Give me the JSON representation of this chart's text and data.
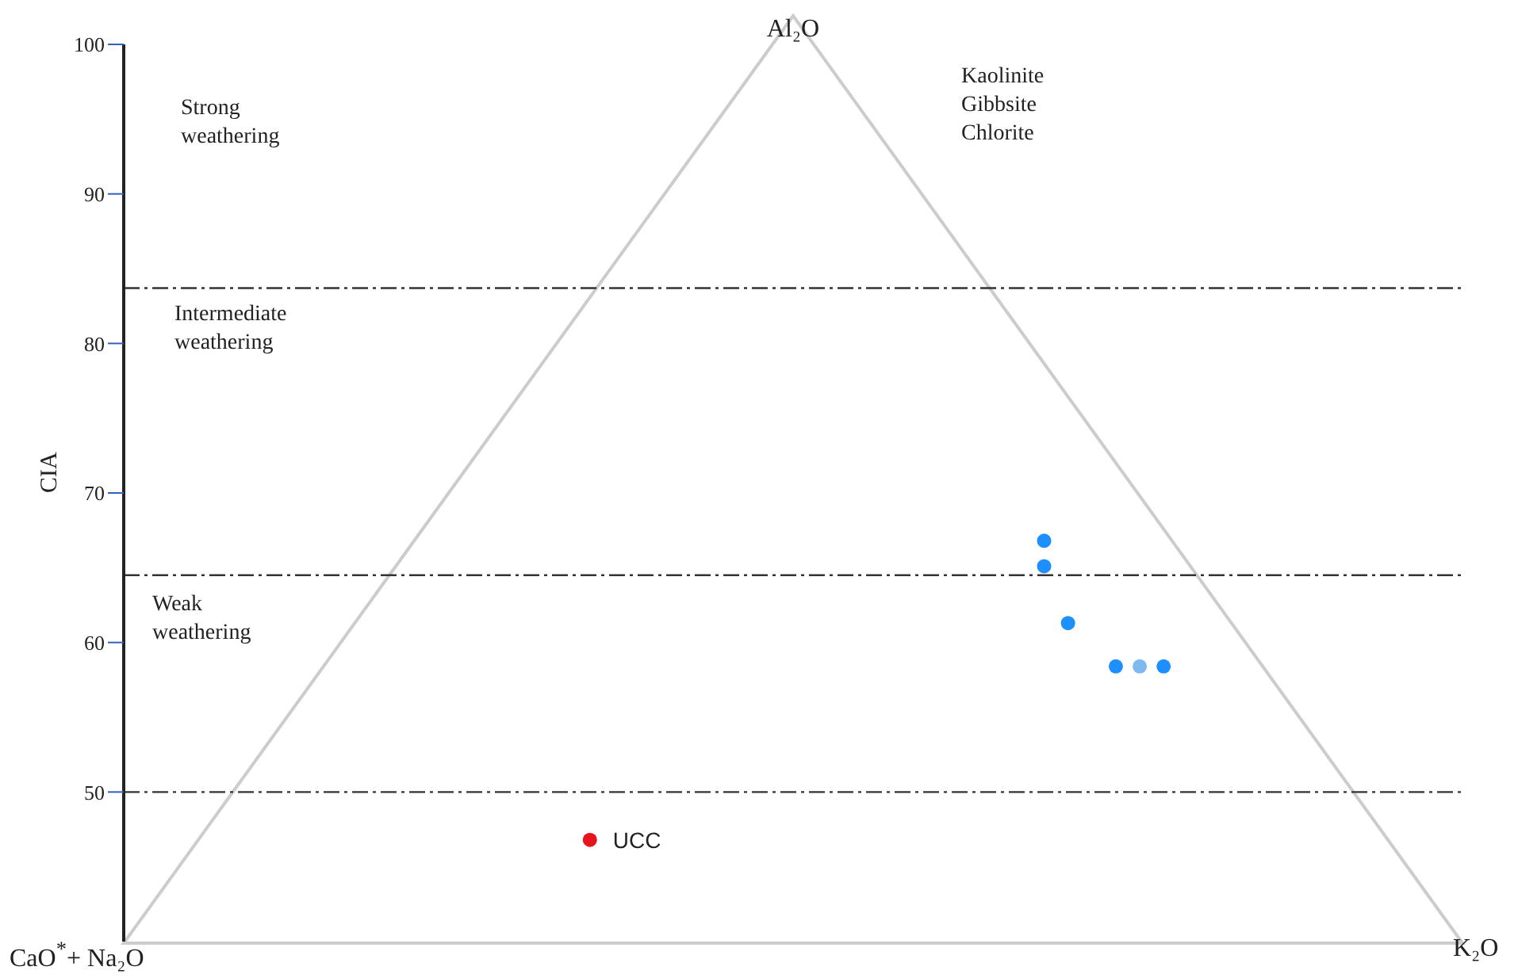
{
  "chart_data": {
    "type": "scatter",
    "ylabel": "CIA",
    "ylim": [
      40,
      100
    ],
    "yticks": [
      50,
      60,
      70,
      80,
      90,
      100
    ],
    "tick_labels": "y",
    "grid": false,
    "marker": "circle",
    "categories": [
      null,
      null,
      null,
      null,
      null,
      null,
      null,
      null,
      null,
      null,
      null,
      null,
      null,
      null,
      null,
      null,
      null,
      null,
      null,
      null,
      null,
      null,
      null,
      null,
      null,
      null,
      null,
      null,
      null,
      null,
      null,
      null,
      null,
      null,
      null,
      null,
      null,
      null,
      null,
      null,
      null,
      null,
      null,
      null,
      null,
      null,
      null,
      null,
      null,
      null,
      null,
      null,
      null,
      null,
      null,
      null
    ],
    "series": [
      {
        "color": "#1e8fff",
        "values": [
          null,
          null,
          null,
          null,
          null,
          null,
          null,
          null,
          null,
          null,
          null,
          null,
          null,
          null,
          null,
          null,
          null,
          null,
          null,
          null,
          null,
          null,
          null,
          null,
          null,
          null,
          null,
          null,
          null,
          null,
          null,
          null,
          null,
          null,
          null,
          null,
          null,
          null,
          66.8,
          61.3,
          null,
          58.4,
          null,
          58.4,
          null,
          null,
          null,
          null,
          null,
          null,
          null,
          null,
          null,
          null,
          null,
          null
        ]
      },
      {
        "color": "#1e8fff",
        "values": [
          null,
          null,
          null,
          null,
          null,
          null,
          null,
          null,
          null,
          null,
          null,
          null,
          null,
          null,
          null,
          null,
          null,
          null,
          null,
          null,
          null,
          null,
          null,
          null,
          null,
          null,
          null,
          null,
          null,
          null,
          null,
          null,
          null,
          null,
          null,
          null,
          null,
          null,
          65.1,
          null,
          null,
          null,
          null,
          null,
          null,
          null,
          null,
          null,
          null,
          null,
          null,
          null,
          null,
          null,
          null,
          null
        ]
      },
      {
        "color": "#80b8f0",
        "values": [
          null,
          null,
          null,
          null,
          null,
          null,
          null,
          null,
          null,
          null,
          null,
          null,
          null,
          null,
          null,
          null,
          null,
          null,
          null,
          null,
          null,
          null,
          null,
          null,
          null,
          null,
          null,
          null,
          null,
          null,
          null,
          null,
          null,
          null,
          null,
          null,
          null,
          null,
          null,
          null,
          null,
          null,
          58.4,
          null,
          null,
          null,
          null,
          null,
          null,
          null,
          null,
          null,
          null,
          null,
          null,
          null
        ]
      },
      {
        "name": "UCC",
        "color": "#e8141c",
        "values": [
          null,
          null,
          null,
          null,
          null,
          null,
          null,
          null,
          null,
          null,
          null,
          null,
          null,
          null,
          null,
          null,
          null,
          null,
          null,
          46.8,
          null,
          null,
          null,
          null,
          null,
          null,
          null,
          null,
          null,
          null,
          null,
          null,
          null,
          null,
          null,
          null,
          null,
          null,
          null,
          null,
          null,
          null,
          null,
          null,
          null,
          null,
          null,
          null,
          null,
          null,
          null,
          null,
          null,
          null,
          null,
          null
        ]
      }
    ],
    "ref_lines": [
      {
        "axis": "y",
        "value": 83.7,
        "line_style": "dashdot",
        "color": "#333333"
      },
      {
        "axis": "y",
        "value": 64.5,
        "line_style": "dashdot",
        "color": "#333333"
      },
      {
        "axis": "y",
        "value": 50,
        "line_style": "dashdot",
        "color": "#333333"
      }
    ],
    "annotations": [
      "Al₂O",
      "CaO$^{*}$+ Na₂O",
      "K₂O",
      "Strong weathering",
      "Intermediate weathering",
      "Weak weathering",
      "Kaolinite Gibbsite Chlorite"
    ]
  }
}
